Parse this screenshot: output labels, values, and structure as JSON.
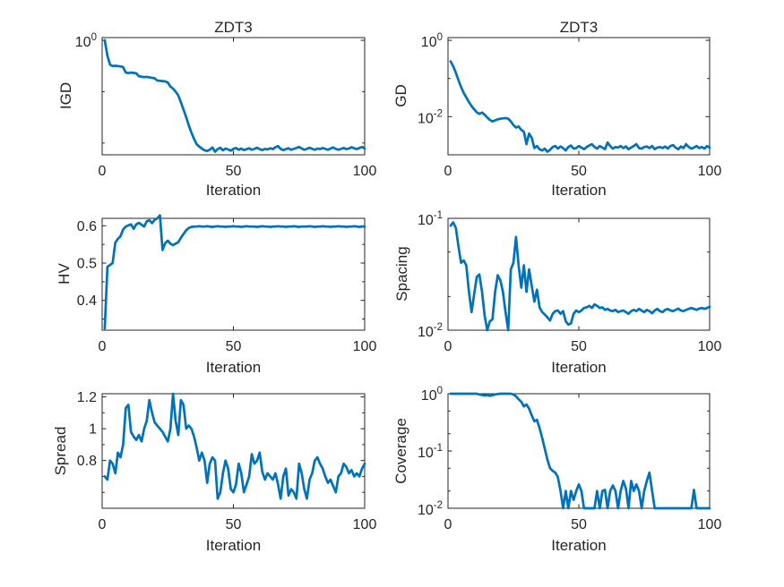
{
  "figure": {
    "background": "#ffffff",
    "line_color": "#0072BD",
    "axis_color": "#262626",
    "text_color": "#262626"
  },
  "chart_data": [
    {
      "id": "igd",
      "type": "line",
      "title": "ZDT3",
      "xlabel": "Iteration",
      "ylabel": "IGD",
      "yscale": "log",
      "xlim": [
        0,
        100
      ],
      "ylim": [
        0.0059,
        1.13
      ],
      "x_start": 1,
      "xticks": [
        {
          "v": 0,
          "label": "0"
        },
        {
          "v": 50,
          "label": "50"
        },
        {
          "v": 100,
          "label": "100"
        }
      ],
      "yticks": [
        {
          "v": 1,
          "label": "10^0"
        },
        {
          "v": 0.1,
          "label": ""
        },
        {
          "v": 0.01,
          "label": ""
        }
      ],
      "yminor": [],
      "values": [
        1.0,
        0.5,
        0.335,
        0.315,
        0.32,
        0.315,
        0.31,
        0.3,
        0.235,
        0.23,
        0.235,
        0.232,
        0.228,
        0.2,
        0.196,
        0.192,
        0.194,
        0.19,
        0.186,
        0.182,
        0.165,
        0.163,
        0.161,
        0.158,
        0.15,
        0.126,
        0.115,
        0.1,
        0.084,
        0.062,
        0.045,
        0.032,
        0.022,
        0.016,
        0.012,
        0.0095,
        0.0085,
        0.0078,
        0.0072,
        0.007,
        0.0074,
        0.0082,
        0.0068,
        0.0076,
        0.0081,
        0.0072,
        0.0078,
        0.0075,
        0.0071,
        0.0077,
        0.008,
        0.0074,
        0.0078,
        0.0073,
        0.0076,
        0.0079,
        0.0074,
        0.0077,
        0.0081,
        0.0076,
        0.0073,
        0.0077,
        0.0075,
        0.0079,
        0.0076,
        0.0083,
        0.0087,
        0.0077,
        0.0073,
        0.0076,
        0.0079,
        0.0074,
        0.0077,
        0.008,
        0.0084,
        0.0078,
        0.0074,
        0.0077,
        0.0081,
        0.0077,
        0.0074,
        0.0078,
        0.0076,
        0.008,
        0.0077,
        0.0074,
        0.0078,
        0.0082,
        0.0077,
        0.0074,
        0.0077,
        0.008,
        0.0076,
        0.0078,
        0.0083,
        0.0079,
        0.0076,
        0.008,
        0.0084,
        0.0078
      ]
    },
    {
      "id": "gd",
      "type": "line",
      "title": "ZDT3",
      "xlabel": "Iteration",
      "ylabel": "GD",
      "yscale": "log",
      "xlim": [
        0,
        100
      ],
      "ylim": [
        0.001,
        1.18
      ],
      "x_start": 1,
      "xticks": [
        {
          "v": 0,
          "label": "0"
        },
        {
          "v": 50,
          "label": "50"
        },
        {
          "v": 100,
          "label": "100"
        }
      ],
      "yticks": [
        {
          "v": 1,
          "label": "10^0"
        },
        {
          "v": 0.1,
          "label": ""
        },
        {
          "v": 0.01,
          "label": "10^-2"
        }
      ],
      "yminor": [],
      "values": [
        0.28,
        0.21,
        0.14,
        0.09,
        0.06,
        0.042,
        0.032,
        0.024,
        0.019,
        0.0155,
        0.013,
        0.0118,
        0.0128,
        0.0112,
        0.0095,
        0.0082,
        0.0075,
        0.008,
        0.0085,
        0.0088,
        0.009,
        0.0092,
        0.0088,
        0.0075,
        0.006,
        0.0052,
        0.0055,
        0.0045,
        0.004,
        0.0019,
        0.0036,
        0.0028,
        0.0015,
        0.0017,
        0.0014,
        0.0013,
        0.00145,
        0.0012,
        0.00135,
        0.0016,
        0.0017,
        0.00145,
        0.00165,
        0.0015,
        0.0013,
        0.0016,
        0.00175,
        0.00145,
        0.0015,
        0.0017,
        0.00155,
        0.0014,
        0.0016,
        0.00175,
        0.0019,
        0.0016,
        0.00145,
        0.0017,
        0.00155,
        0.0014,
        0.0021,
        0.0017,
        0.00145,
        0.0016,
        0.00155,
        0.0017,
        0.0015,
        0.00165,
        0.0014,
        0.00155,
        0.0017,
        0.0019,
        0.0015,
        0.00145,
        0.0016,
        0.00165,
        0.0015,
        0.0017,
        0.0014,
        0.00155,
        0.0016,
        0.0015,
        0.00165,
        0.00145,
        0.0017,
        0.0018,
        0.00155,
        0.0014,
        0.00165,
        0.0015,
        0.0019,
        0.0016,
        0.00145,
        0.00155,
        0.0017,
        0.0015,
        0.0016,
        0.00145,
        0.0017,
        0.00155
      ]
    },
    {
      "id": "hv",
      "type": "line",
      "title": "",
      "xlabel": "Iteration",
      "ylabel": "HV",
      "yscale": "linear",
      "xlim": [
        0,
        100
      ],
      "ylim": [
        0.32,
        0.62
      ],
      "x_start": 1,
      "xticks": [
        {
          "v": 0,
          "label": "0"
        },
        {
          "v": 50,
          "label": "50"
        },
        {
          "v": 100,
          "label": "100"
        }
      ],
      "yticks": [
        {
          "v": 0.4,
          "label": "0.4"
        },
        {
          "v": 0.5,
          "label": "0.5"
        },
        {
          "v": 0.6,
          "label": "0.6"
        }
      ],
      "yminor": [
        0.35,
        0.45,
        0.55
      ],
      "values": [
        0.325,
        0.49,
        0.495,
        0.5,
        0.555,
        0.565,
        0.572,
        0.59,
        0.598,
        0.601,
        0.604,
        0.592,
        0.604,
        0.608,
        0.603,
        0.598,
        0.612,
        0.615,
        0.607,
        0.616,
        0.62,
        0.628,
        0.535,
        0.553,
        0.56,
        0.552,
        0.548,
        0.552,
        0.556,
        0.568,
        0.578,
        0.588,
        0.594,
        0.597,
        0.598,
        0.598,
        0.599,
        0.598,
        0.598,
        0.599,
        0.598,
        0.597,
        0.598,
        0.599,
        0.598,
        0.598,
        0.597,
        0.598,
        0.598,
        0.599,
        0.598,
        0.598,
        0.597,
        0.598,
        0.599,
        0.598,
        0.598,
        0.598,
        0.597,
        0.598,
        0.599,
        0.598,
        0.598,
        0.597,
        0.598,
        0.598,
        0.599,
        0.598,
        0.598,
        0.597,
        0.598,
        0.598,
        0.599,
        0.598,
        0.597,
        0.598,
        0.598,
        0.598,
        0.599,
        0.598,
        0.597,
        0.598,
        0.598,
        0.599,
        0.598,
        0.598,
        0.597,
        0.598,
        0.598,
        0.599,
        0.598,
        0.598,
        0.597,
        0.598,
        0.598,
        0.599,
        0.598,
        0.597,
        0.598,
        0.598
      ]
    },
    {
      "id": "spacing",
      "type": "line",
      "title": "",
      "xlabel": "Iteration",
      "ylabel": "Spacing",
      "yscale": "log",
      "xlim": [
        0,
        100
      ],
      "ylim": [
        0.01,
        0.1
      ],
      "x_start": 1,
      "xticks": [
        {
          "v": 0,
          "label": "0"
        },
        {
          "v": 50,
          "label": "50"
        },
        {
          "v": 100,
          "label": "100"
        }
      ],
      "yticks": [
        {
          "v": 0.1,
          "label": "10^-1"
        },
        {
          "v": 0.01,
          "label": "10^-2"
        }
      ],
      "yminor": [
        0.05,
        0.02
      ],
      "values": [
        0.086,
        0.092,
        0.082,
        0.056,
        0.04,
        0.042,
        0.038,
        0.022,
        0.0145,
        0.021,
        0.03,
        0.0315,
        0.022,
        0.0135,
        0.01,
        0.012,
        0.0125,
        0.022,
        0.031,
        0.028,
        0.022,
        0.0145,
        0.01,
        0.035,
        0.04,
        0.068,
        0.038,
        0.024,
        0.038,
        0.022,
        0.035,
        0.025,
        0.018,
        0.023,
        0.016,
        0.0145,
        0.0138,
        0.013,
        0.0122,
        0.014,
        0.0148,
        0.015,
        0.014,
        0.0148,
        0.012,
        0.0112,
        0.0115,
        0.014,
        0.015,
        0.0145,
        0.015,
        0.0158,
        0.016,
        0.0165,
        0.0158,
        0.017,
        0.0165,
        0.0158,
        0.016,
        0.0152,
        0.0155,
        0.015,
        0.0148,
        0.0152,
        0.0145,
        0.0148,
        0.015,
        0.0145,
        0.014,
        0.0148,
        0.0152,
        0.0148,
        0.0155,
        0.015,
        0.0145,
        0.0152,
        0.0148,
        0.0142,
        0.015,
        0.0155,
        0.0148,
        0.0145,
        0.0152,
        0.0155,
        0.015,
        0.0148,
        0.0152,
        0.0156,
        0.015,
        0.0148,
        0.0152,
        0.0155,
        0.0158,
        0.0155,
        0.0152,
        0.0156,
        0.0158,
        0.0155,
        0.0158,
        0.0162
      ]
    },
    {
      "id": "spread",
      "type": "line",
      "title": "",
      "xlabel": "Iteration",
      "ylabel": "Spread",
      "yscale": "linear",
      "xlim": [
        0,
        100
      ],
      "ylim": [
        0.5,
        1.22
      ],
      "x_start": 1,
      "xticks": [
        {
          "v": 0,
          "label": "0"
        },
        {
          "v": 50,
          "label": "50"
        },
        {
          "v": 100,
          "label": "100"
        }
      ],
      "yticks": [
        {
          "v": 0.8,
          "label": "0.8"
        },
        {
          "v": 1.0,
          "label": "1"
        },
        {
          "v": 1.2,
          "label": "1.2"
        }
      ],
      "yminor": [
        0.6,
        0.7,
        0.9,
        1.1
      ],
      "values": [
        0.7,
        0.68,
        0.8,
        0.78,
        0.72,
        0.85,
        0.82,
        0.9,
        1.13,
        1.15,
        0.98,
        0.95,
        0.93,
        0.96,
        0.92,
        1.0,
        1.05,
        1.18,
        1.1,
        1.04,
        1.02,
        1.0,
        0.98,
        0.95,
        0.92,
        1.0,
        1.22,
        1.05,
        0.96,
        1.18,
        1.15,
        1.0,
        1.02,
        1.0,
        0.95,
        0.88,
        0.8,
        0.85,
        0.8,
        0.66,
        0.78,
        0.82,
        0.8,
        0.56,
        0.6,
        0.72,
        0.8,
        0.75,
        0.62,
        0.6,
        0.65,
        0.78,
        0.72,
        0.6,
        0.65,
        0.7,
        0.84,
        0.78,
        0.8,
        0.85,
        0.73,
        0.68,
        0.72,
        0.7,
        0.68,
        0.72,
        0.65,
        0.56,
        0.7,
        0.75,
        0.58,
        0.62,
        0.6,
        0.56,
        0.78,
        0.72,
        0.62,
        0.56,
        0.68,
        0.72,
        0.8,
        0.82,
        0.78,
        0.75,
        0.7,
        0.66,
        0.68,
        0.64,
        0.6,
        0.7,
        0.72,
        0.78,
        0.76,
        0.72,
        0.74,
        0.7,
        0.72,
        0.7,
        0.75,
        0.78
      ]
    },
    {
      "id": "coverage",
      "type": "line",
      "title": "",
      "xlabel": "Iteration",
      "ylabel": "Coverage",
      "yscale": "log",
      "xlim": [
        0,
        100
      ],
      "ylim": [
        0.01,
        1.0
      ],
      "x_start": 1,
      "xticks": [
        {
          "v": 0,
          "label": "0"
        },
        {
          "v": 50,
          "label": "50"
        },
        {
          "v": 100,
          "label": "100"
        }
      ],
      "yticks": [
        {
          "v": 1,
          "label": "10^0"
        },
        {
          "v": 0.1,
          "label": "10^-1"
        },
        {
          "v": 0.01,
          "label": "10^-2"
        }
      ],
      "yminor": [
        0.5,
        0.2,
        0.05,
        0.02
      ],
      "values": [
        1.0,
        1.0,
        1.0,
        1.0,
        1.0,
        1.0,
        1.0,
        1.0,
        1.0,
        1.0,
        1.0,
        0.97,
        0.95,
        0.93,
        0.95,
        0.92,
        0.94,
        0.97,
        0.99,
        1.0,
        1.0,
        1.0,
        1.0,
        1.0,
        0.97,
        0.9,
        0.8,
        0.72,
        0.6,
        0.65,
        0.55,
        0.42,
        0.33,
        0.35,
        0.25,
        0.17,
        0.11,
        0.07,
        0.05,
        0.045,
        0.042,
        0.035,
        0.02,
        0.01,
        0.02,
        0.01,
        0.02,
        0.014,
        0.02,
        0.026,
        0.02,
        0.01,
        0.01,
        0.01,
        0.01,
        0.01,
        0.02,
        0.01,
        0.02,
        0.021,
        0.01,
        0.02,
        0.025,
        0.02,
        0.01,
        0.02,
        0.03,
        0.022,
        0.01,
        0.03,
        0.02,
        0.026,
        0.02,
        0.01,
        0.02,
        0.03,
        0.042,
        0.02,
        0.01,
        0.01,
        0.01,
        0.01,
        0.01,
        0.01,
        0.01,
        0.01,
        0.01,
        0.01,
        0.01,
        0.01,
        0.01,
        0.01,
        0.01,
        0.021,
        0.01,
        0.01,
        0.01,
        0.01,
        0.01,
        0.01
      ]
    }
  ]
}
